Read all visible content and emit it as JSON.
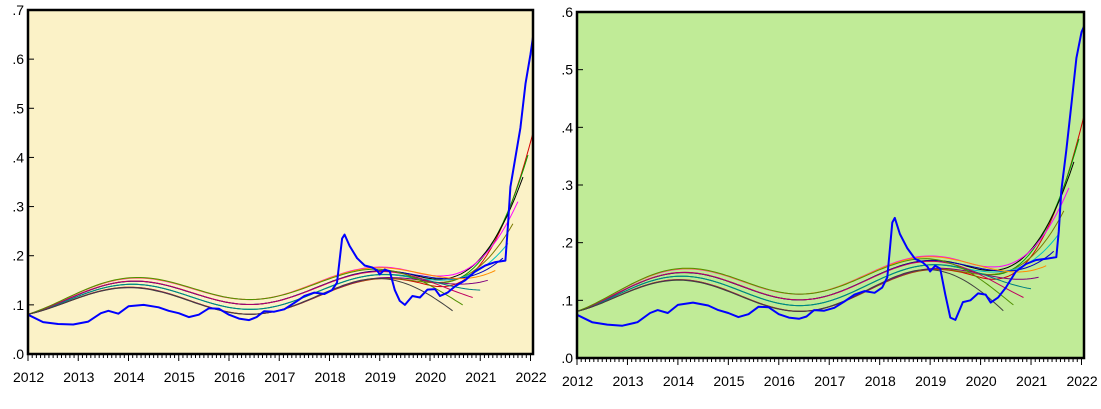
{
  "chart_data": [
    {
      "type": "line",
      "background": "#fbf2c7",
      "y_ticks": [
        ".0",
        ".1",
        ".2",
        ".3",
        ".4",
        ".5",
        ".6",
        ".7"
      ],
      "y_tick_values": [
        0,
        0.1,
        0.2,
        0.3,
        0.4,
        0.5,
        0.6,
        0.7
      ],
      "ylim": [
        0,
        0.7
      ],
      "x_ticks": [
        "2012",
        "2013",
        "2014",
        "2015",
        "2016",
        "2017",
        "2018",
        "2019",
        "2020",
        "2021",
        "2022"
      ],
      "xlim": [
        2012.0,
        2022.05
      ],
      "grid": false,
      "actual": {
        "color": "#0000ff",
        "points": [
          [
            2012.0,
            0.08
          ],
          [
            2012.3,
            0.065
          ],
          [
            2012.6,
            0.061
          ],
          [
            2012.9,
            0.06
          ],
          [
            2013.2,
            0.066
          ],
          [
            2013.45,
            0.083
          ],
          [
            2013.6,
            0.088
          ],
          [
            2013.8,
            0.082
          ],
          [
            2014.0,
            0.097
          ],
          [
            2014.3,
            0.1
          ],
          [
            2014.6,
            0.095
          ],
          [
            2014.8,
            0.088
          ],
          [
            2015.0,
            0.083
          ],
          [
            2015.2,
            0.075
          ],
          [
            2015.4,
            0.08
          ],
          [
            2015.6,
            0.093
          ],
          [
            2015.8,
            0.092
          ],
          [
            2016.0,
            0.08
          ],
          [
            2016.2,
            0.072
          ],
          [
            2016.4,
            0.069
          ],
          [
            2016.55,
            0.075
          ],
          [
            2016.7,
            0.087
          ],
          [
            2016.9,
            0.086
          ],
          [
            2017.1,
            0.091
          ],
          [
            2017.3,
            0.104
          ],
          [
            2017.5,
            0.118
          ],
          [
            2017.7,
            0.125
          ],
          [
            2017.9,
            0.122
          ],
          [
            2018.05,
            0.13
          ],
          [
            2018.15,
            0.145
          ],
          [
            2018.25,
            0.235
          ],
          [
            2018.3,
            0.243
          ],
          [
            2018.4,
            0.22
          ],
          [
            2018.55,
            0.195
          ],
          [
            2018.7,
            0.18
          ],
          [
            2018.85,
            0.176
          ],
          [
            2018.95,
            0.17
          ],
          [
            2019.0,
            0.162
          ],
          [
            2019.1,
            0.172
          ],
          [
            2019.2,
            0.168
          ],
          [
            2019.3,
            0.13
          ],
          [
            2019.4,
            0.108
          ],
          [
            2019.5,
            0.1
          ],
          [
            2019.65,
            0.118
          ],
          [
            2019.8,
            0.115
          ],
          [
            2019.95,
            0.131
          ],
          [
            2020.1,
            0.132
          ],
          [
            2020.2,
            0.118
          ],
          [
            2020.35,
            0.125
          ],
          [
            2020.5,
            0.138
          ],
          [
            2020.7,
            0.15
          ],
          [
            2020.9,
            0.168
          ],
          [
            2021.1,
            0.18
          ],
          [
            2021.3,
            0.187
          ],
          [
            2021.5,
            0.19
          ],
          [
            2021.55,
            0.26
          ],
          [
            2021.6,
            0.34
          ],
          [
            2021.7,
            0.4
          ],
          [
            2021.8,
            0.46
          ],
          [
            2021.9,
            0.55
          ],
          [
            2022.0,
            0.61
          ],
          [
            2022.05,
            0.645
          ]
        ]
      },
      "forecasts": {
        "colors": [
          "#d40000",
          "#00a000",
          "#000000",
          "#ff00ff",
          "#7a7a00",
          "#00c0c0",
          "#0000c0",
          "#ff8c00",
          "#7f007f",
          "#008080",
          "#c00060",
          "#509000",
          "#404040"
        ],
        "end_years": [
          2022.05,
          2021.95,
          2021.85,
          2021.75,
          2021.65,
          2021.55,
          2021.45,
          2021.3,
          2021.15,
          2021.0,
          2020.85,
          2020.65,
          2020.45
        ],
        "end_values": [
          0.45,
          0.405,
          0.36,
          0.31,
          0.265,
          0.225,
          0.195,
          0.17,
          0.15,
          0.13,
          0.115,
          0.1,
          0.088
        ]
      }
    },
    {
      "type": "line",
      "background": "#c0eb97",
      "y_ticks": [
        ".0",
        ".1",
        ".2",
        ".3",
        ".4",
        ".5",
        ".6"
      ],
      "y_tick_values": [
        0,
        0.1,
        0.2,
        0.3,
        0.4,
        0.5,
        0.6
      ],
      "ylim": [
        0,
        0.6
      ],
      "x_ticks": [
        "2012",
        "2013",
        "2014",
        "2015",
        "2016",
        "2017",
        "2018",
        "2019",
        "2020",
        "2021",
        "2022"
      ],
      "xlim": [
        2012.0,
        2022.05
      ],
      "grid": false,
      "actual": {
        "color": "#0000ff",
        "points": [
          [
            2012.0,
            0.075
          ],
          [
            2012.3,
            0.062
          ],
          [
            2012.6,
            0.058
          ],
          [
            2012.9,
            0.056
          ],
          [
            2013.2,
            0.062
          ],
          [
            2013.45,
            0.078
          ],
          [
            2013.6,
            0.083
          ],
          [
            2013.8,
            0.078
          ],
          [
            2014.0,
            0.092
          ],
          [
            2014.3,
            0.096
          ],
          [
            2014.6,
            0.091
          ],
          [
            2014.8,
            0.083
          ],
          [
            2015.0,
            0.078
          ],
          [
            2015.2,
            0.071
          ],
          [
            2015.4,
            0.076
          ],
          [
            2015.6,
            0.089
          ],
          [
            2015.8,
            0.088
          ],
          [
            2016.0,
            0.076
          ],
          [
            2016.2,
            0.07
          ],
          [
            2016.4,
            0.068
          ],
          [
            2016.55,
            0.072
          ],
          [
            2016.7,
            0.083
          ],
          [
            2016.9,
            0.082
          ],
          [
            2017.1,
            0.087
          ],
          [
            2017.3,
            0.098
          ],
          [
            2017.5,
            0.11
          ],
          [
            2017.7,
            0.116
          ],
          [
            2017.9,
            0.113
          ],
          [
            2018.05,
            0.122
          ],
          [
            2018.15,
            0.14
          ],
          [
            2018.25,
            0.235
          ],
          [
            2018.3,
            0.243
          ],
          [
            2018.4,
            0.215
          ],
          [
            2018.55,
            0.19
          ],
          [
            2018.7,
            0.172
          ],
          [
            2018.85,
            0.166
          ],
          [
            2018.95,
            0.158
          ],
          [
            2019.0,
            0.15
          ],
          [
            2019.1,
            0.16
          ],
          [
            2019.2,
            0.155
          ],
          [
            2019.3,
            0.11
          ],
          [
            2019.4,
            0.07
          ],
          [
            2019.5,
            0.066
          ],
          [
            2019.65,
            0.097
          ],
          [
            2019.8,
            0.1
          ],
          [
            2019.95,
            0.112
          ],
          [
            2020.1,
            0.11
          ],
          [
            2020.2,
            0.096
          ],
          [
            2020.35,
            0.105
          ],
          [
            2020.5,
            0.122
          ],
          [
            2020.7,
            0.15
          ],
          [
            2020.9,
            0.163
          ],
          [
            2021.1,
            0.17
          ],
          [
            2021.3,
            0.172
          ],
          [
            2021.5,
            0.175
          ],
          [
            2021.55,
            0.22
          ],
          [
            2021.6,
            0.29
          ],
          [
            2021.7,
            0.36
          ],
          [
            2021.8,
            0.44
          ],
          [
            2021.9,
            0.52
          ],
          [
            2022.0,
            0.565
          ],
          [
            2022.05,
            0.575
          ]
        ]
      },
      "forecasts": {
        "colors": [
          "#d40000",
          "#00a000",
          "#000000",
          "#ff00ff",
          "#7a7a00",
          "#00c0c0",
          "#0000c0",
          "#ff8c00",
          "#7f007f",
          "#008080",
          "#c00060",
          "#509000",
          "#404040"
        ],
        "end_years": [
          2022.05,
          2021.95,
          2021.85,
          2021.75,
          2021.65,
          2021.55,
          2021.45,
          2021.3,
          2021.15,
          2021.0,
          2020.85,
          2020.65,
          2020.45
        ],
        "end_values": [
          0.42,
          0.38,
          0.34,
          0.295,
          0.255,
          0.215,
          0.185,
          0.16,
          0.14,
          0.12,
          0.105,
          0.092,
          0.082
        ]
      }
    }
  ]
}
